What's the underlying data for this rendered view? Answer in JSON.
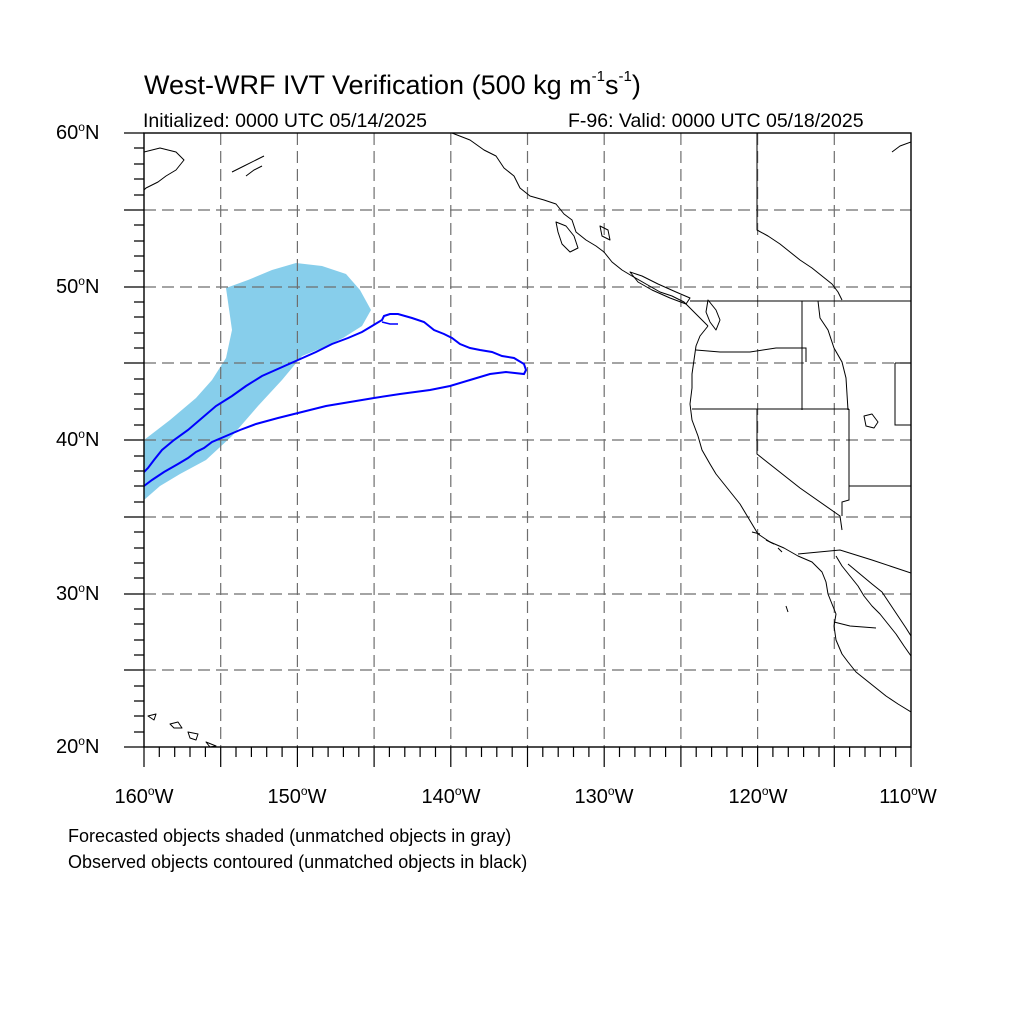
{
  "figure": {
    "title_main": "West-WRF IVT Verification (500 kg m",
    "title_exp1": "-1",
    "title_mid": "s",
    "title_exp2": "-1",
    "title_end": ")",
    "subtitle_left": "Initialized: 0000 UTC 05/14/2025",
    "subtitle_right": "F-96: Valid: 0000 UTC 05/18/2025",
    "note_1": "Forecasted objects shaded (unmatched objects in gray)",
    "note_2": "Observed objects contoured (unmatched objects in black)"
  },
  "map": {
    "projection": "cylindrical equidistant",
    "lon_range": [
      -160,
      -110
    ],
    "lat_range": [
      20,
      60
    ],
    "lat_labels": [
      "60",
      "50",
      "40",
      "30",
      "20"
    ],
    "lat_suffix": "N",
    "lon_labels": [
      "160",
      "150",
      "140",
      "130",
      "120",
      "110"
    ],
    "lon_suffix": "W",
    "degree_symbol": "o",
    "gridlines": "dashed every 5 degrees",
    "colors": {
      "forecast_object_fill": "#87ceeb",
      "observed_object_contour": "#0000ff",
      "coastline": "#000000",
      "grid": "#6e6e6e"
    }
  }
}
